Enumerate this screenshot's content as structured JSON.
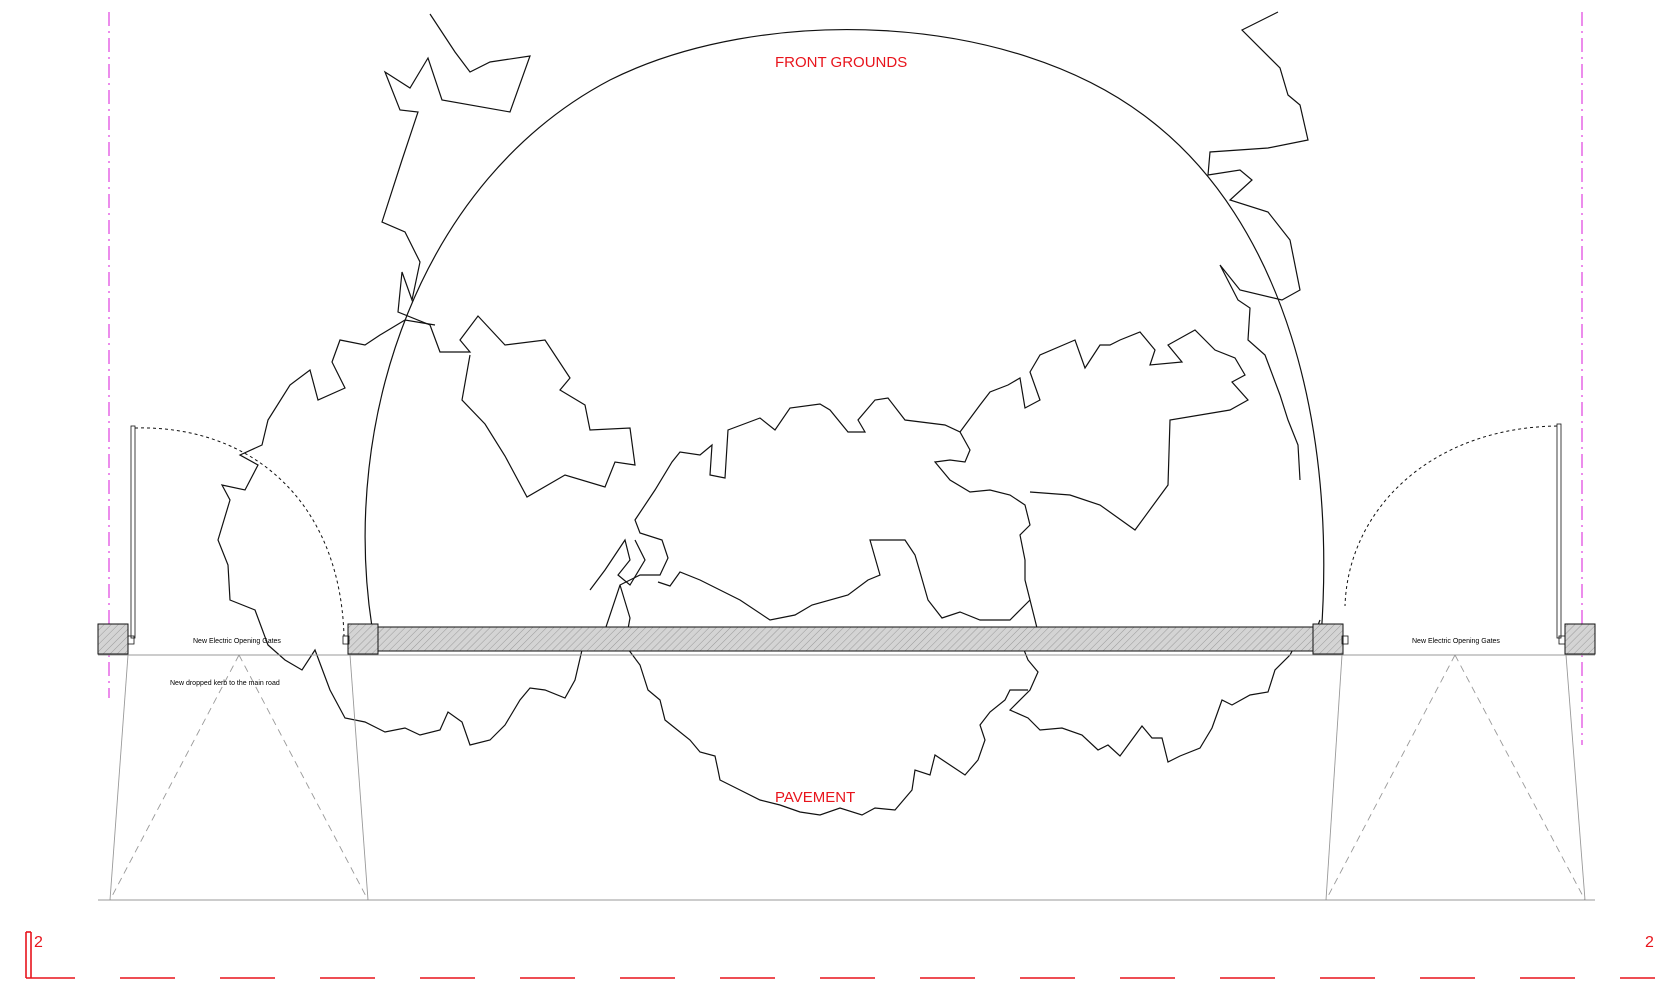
{
  "labels": {
    "front_grounds": "FRONT GROUNDS",
    "pavement": "PAVEMENT",
    "gate_left": "New Electric Opening Gates",
    "gate_right": "New Electric Opening Gates",
    "dropped_kerb": "New dropped kerb to the main road",
    "section_marker_left": "2",
    "section_marker_right": "2"
  },
  "colors": {
    "annotation": "#e8141c",
    "boundary": "#e040e0",
    "linework": "#111111",
    "wall_hatch": "#d0d0d0"
  }
}
